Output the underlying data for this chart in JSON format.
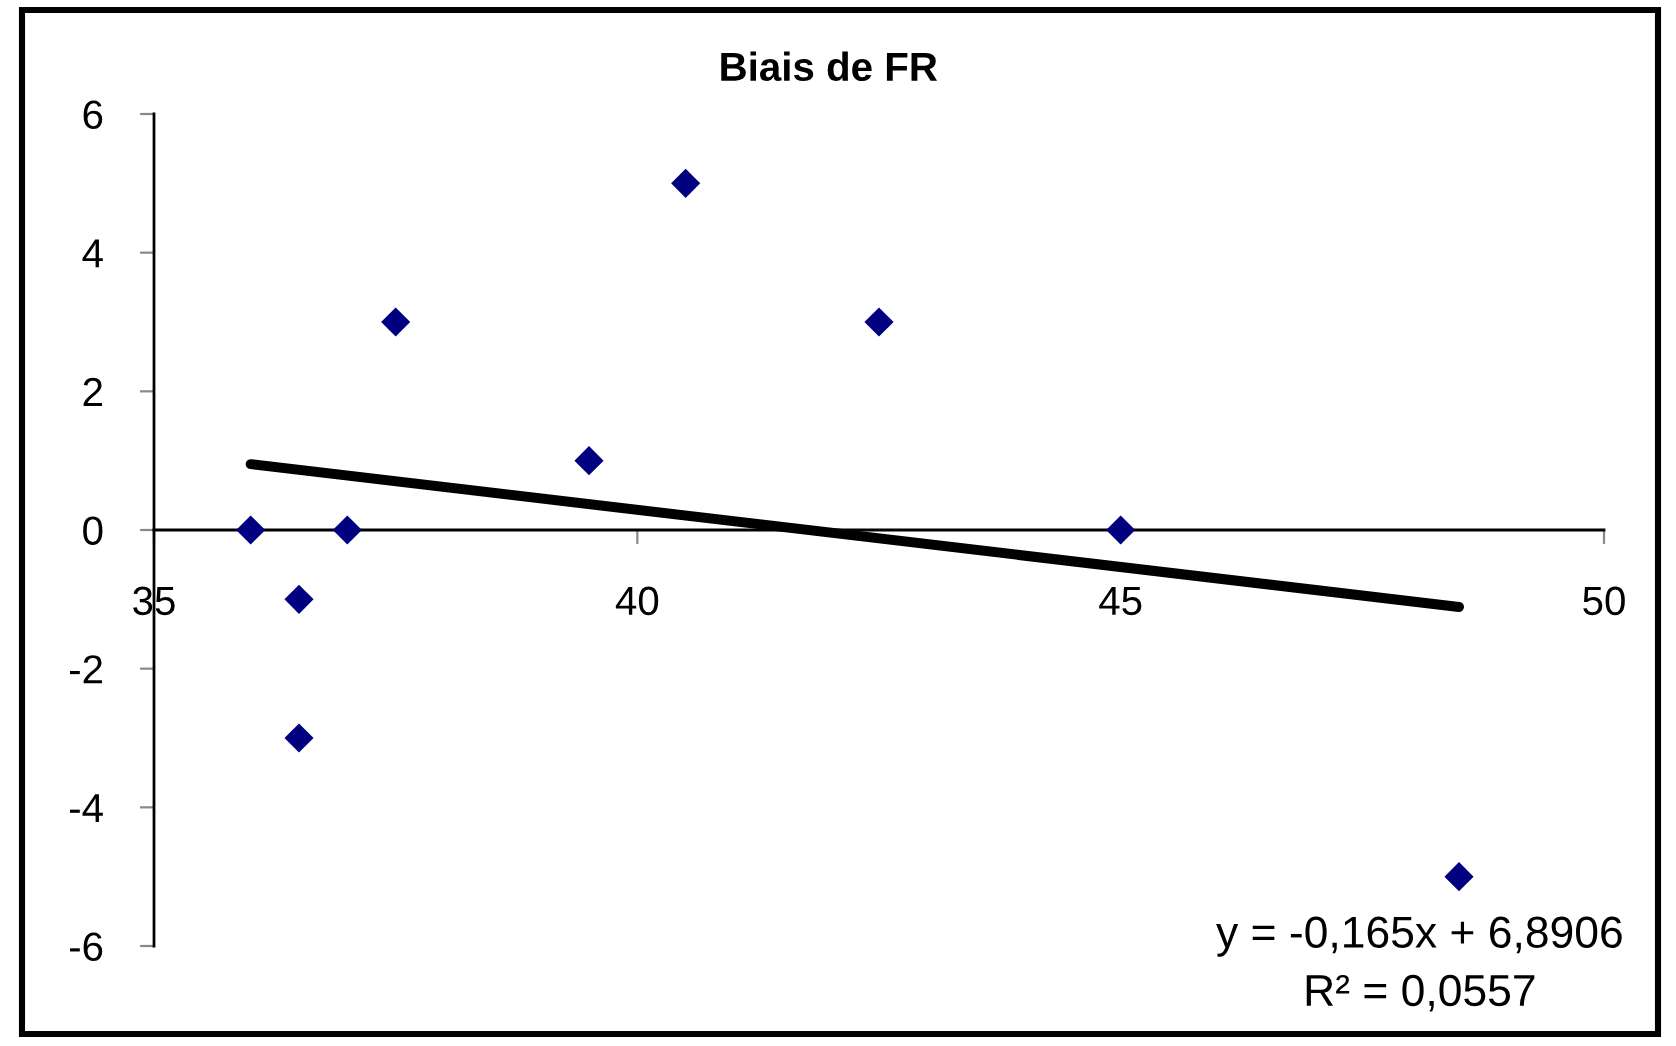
{
  "chart_data": {
    "type": "scatter",
    "title": "Biais de FR",
    "series": [
      {
        "color": "#000080",
        "marker": "diamond",
        "x": [
          36,
          36.5,
          36.5,
          37,
          37.5,
          39.5,
          40.5,
          42.5,
          45,
          48.5
        ],
        "values": [
          0,
          -1,
          -3,
          0,
          3,
          1,
          5,
          3,
          0,
          -5
        ]
      },
      {
        "type": "line",
        "color": "#000000",
        "marker": "none",
        "line_style": "solid",
        "x": [
          36,
          48.5
        ],
        "values": [
          0.95,
          -1.11
        ]
      }
    ],
    "xlim": [
      35,
      50
    ],
    "xticks": [
      35,
      40,
      45,
      50
    ],
    "ylim": [
      -6,
      6
    ],
    "yticks": [
      -6,
      -4,
      -2,
      0,
      2,
      4,
      6
    ],
    "annotations": [
      "y = -0,165x + 6,8906",
      "R² = 0,0557"
    ]
  }
}
